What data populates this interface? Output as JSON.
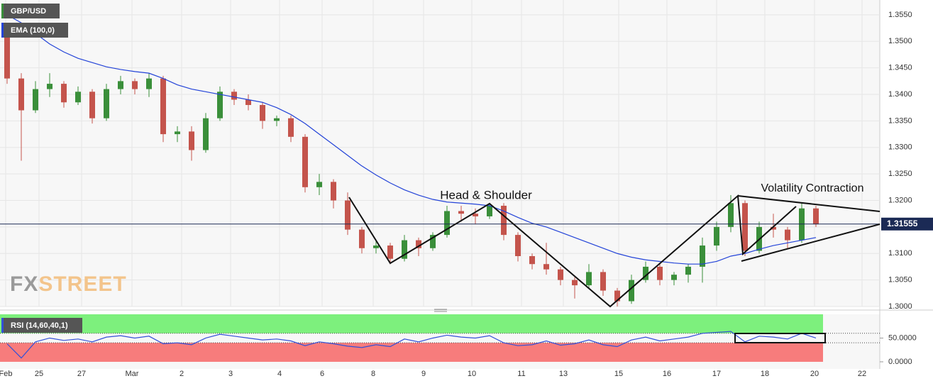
{
  "chart_data": {
    "type": "candlestick",
    "title": "GBP/USD",
    "watermark": [
      "FX",
      "STREET"
    ],
    "annotations": [
      "Head & Shoulder",
      "Volatility Contraction"
    ],
    "xlim": [
      -0.5,
      61.5
    ],
    "xticks": [
      {
        "value": -0.1,
        "label": "Feb"
      },
      {
        "value": 2.25,
        "label": "25"
      },
      {
        "value": 5.25,
        "label": "27"
      },
      {
        "value": 8.8,
        "label": "Mar"
      },
      {
        "value": 12.3,
        "label": "2"
      },
      {
        "value": 15.75,
        "label": "3"
      },
      {
        "value": 19.2,
        "label": "4"
      },
      {
        "value": 22.2,
        "label": "6"
      },
      {
        "value": 25.8,
        "label": "8"
      },
      {
        "value": 29.35,
        "label": "9"
      },
      {
        "value": 32.75,
        "label": "10"
      },
      {
        "value": 36.25,
        "label": "11"
      },
      {
        "value": 39.2,
        "label": "13"
      },
      {
        "value": 43.1,
        "label": "15"
      },
      {
        "value": 46.5,
        "label": "16"
      },
      {
        "value": 50,
        "label": "17"
      },
      {
        "value": 53.4,
        "label": "18"
      },
      {
        "value": 56.9,
        "label": "20"
      },
      {
        "value": 60.25,
        "label": "22"
      }
    ],
    "ylim": [
      1.3,
      1.3578
    ],
    "yticks": [
      {
        "value": 1.3,
        "label": "1.3000"
      },
      {
        "value": 1.305,
        "label": "1.3050"
      },
      {
        "value": 1.31,
        "label": "1.3100"
      },
      {
        "value": 1.315,
        "label": "1.3150"
      },
      {
        "value": 1.32,
        "label": "1.3200"
      },
      {
        "value": 1.325,
        "label": "1.3250"
      },
      {
        "value": 1.33,
        "label": "1.3300"
      },
      {
        "value": 1.335,
        "label": "1.3350"
      },
      {
        "value": 1.34,
        "label": "1.3400"
      },
      {
        "value": 1.345,
        "label": "1.3450"
      },
      {
        "value": 1.35,
        "label": "1.3500"
      },
      {
        "value": 1.355,
        "label": "1.3550"
      }
    ],
    "grid": true,
    "last_price": 1.31555,
    "up_color": "#3a8f3a",
    "down_color": "#c4544c",
    "open": [
      1.352,
      1.343,
      1.337,
      1.341,
      1.342,
      1.3385,
      1.3405,
      1.3355,
      1.341,
      1.3425,
      1.341,
      1.343,
      1.3325,
      1.333,
      1.3295,
      1.3355,
      1.3405,
      1.339,
      1.338,
      1.335,
      1.3355,
      1.332,
      1.3225,
      1.3235,
      1.32,
      1.3145,
      1.311,
      1.3115,
      1.309,
      1.3125,
      1.311,
      1.3135,
      1.318,
      1.3175,
      1.317,
      1.319,
      1.3135,
      1.3095,
      1.308,
      1.307,
      1.305,
      1.304,
      1.3065,
      1.303,
      1.301,
      1.305,
      1.3075,
      1.305,
      1.306,
      1.3075,
      1.3115,
      1.315,
      1.3195,
      1.3105,
      1.315,
      1.3145,
      1.3125,
      1.3185
    ],
    "high": [
      1.3525,
      1.344,
      1.3425,
      1.344,
      1.3425,
      1.3415,
      1.341,
      1.342,
      1.3435,
      1.343,
      1.344,
      1.3435,
      1.334,
      1.334,
      1.3365,
      1.3415,
      1.341,
      1.34,
      1.3385,
      1.336,
      1.336,
      1.3325,
      1.325,
      1.324,
      1.3215,
      1.315,
      1.3125,
      1.312,
      1.3135,
      1.313,
      1.314,
      1.319,
      1.319,
      1.3185,
      1.3195,
      1.3195,
      1.314,
      1.31,
      1.312,
      1.3075,
      1.3055,
      1.308,
      1.307,
      1.3035,
      1.306,
      1.3085,
      1.308,
      1.3065,
      1.308,
      1.313,
      1.316,
      1.321,
      1.32,
      1.316,
      1.3175,
      1.315,
      1.3195,
      1.319
    ],
    "low": [
      1.342,
      1.3275,
      1.3365,
      1.3395,
      1.3375,
      1.338,
      1.3345,
      1.335,
      1.34,
      1.34,
      1.3395,
      1.331,
      1.331,
      1.3275,
      1.329,
      1.335,
      1.338,
      1.337,
      1.3335,
      1.334,
      1.331,
      1.3215,
      1.321,
      1.3185,
      1.3135,
      1.31,
      1.31,
      1.308,
      1.3085,
      1.3095,
      1.3105,
      1.313,
      1.316,
      1.3155,
      1.3165,
      1.3125,
      1.3085,
      1.307,
      1.306,
      1.304,
      1.3015,
      1.3035,
      1.302,
      1.3,
      1.3005,
      1.3045,
      1.304,
      1.304,
      1.3045,
      1.3045,
      1.3105,
      1.314,
      1.3095,
      1.31,
      1.313,
      1.311,
      1.312,
      1.315
    ],
    "close": [
      1.343,
      1.337,
      1.341,
      1.342,
      1.3385,
      1.3405,
      1.3355,
      1.341,
      1.3425,
      1.341,
      1.343,
      1.3325,
      1.333,
      1.3295,
      1.3355,
      1.3405,
      1.339,
      1.338,
      1.335,
      1.3355,
      1.332,
      1.3225,
      1.3235,
      1.32,
      1.3145,
      1.311,
      1.3115,
      1.309,
      1.3125,
      1.311,
      1.3135,
      1.318,
      1.3175,
      1.317,
      1.319,
      1.3135,
      1.3095,
      1.308,
      1.307,
      1.305,
      1.304,
      1.3065,
      1.303,
      1.301,
      1.305,
      1.3075,
      1.305,
      1.306,
      1.3075,
      1.3115,
      1.315,
      1.3195,
      1.3105,
      1.315,
      1.3145,
      1.3125,
      1.3185,
      1.3155
    ],
    "ema": {
      "name": "EMA (100,0)",
      "color": "#2343d8",
      "values": [
        1.355,
        1.3535,
        1.3515,
        1.3495,
        1.348,
        1.3468,
        1.346,
        1.3452,
        1.3447,
        1.3443,
        1.344,
        1.343,
        1.3418,
        1.341,
        1.3405,
        1.34,
        1.3395,
        1.339,
        1.3385,
        1.3375,
        1.3362,
        1.3345,
        1.3325,
        1.3305,
        1.3285,
        1.3265,
        1.3248,
        1.3233,
        1.322,
        1.321,
        1.3202,
        1.3197,
        1.3195,
        1.3193,
        1.319,
        1.318,
        1.3168,
        1.3157,
        1.315,
        1.314,
        1.313,
        1.312,
        1.311,
        1.31,
        1.3093,
        1.3088,
        1.3085,
        1.3082,
        1.308,
        1.308,
        1.3085,
        1.3095,
        1.31,
        1.3108,
        1.3115,
        1.312,
        1.3125,
        1.313
      ]
    },
    "rsi": {
      "name": "RSI (14,60,40,1)",
      "color": "#3250d8",
      "upper_band": 60,
      "lower_band": 40,
      "ylim": [
        -15,
        100
      ],
      "yticks": [
        {
          "value": 0,
          "label": "0.0000"
        },
        {
          "value": 50,
          "label": "50.0000"
        }
      ],
      "values": [
        38,
        8,
        42,
        50,
        45,
        48,
        42,
        52,
        55,
        50,
        54,
        38,
        40,
        36,
        50,
        58,
        54,
        50,
        46,
        48,
        44,
        34,
        42,
        38,
        33,
        30,
        36,
        32,
        48,
        42,
        50,
        56,
        52,
        50,
        55,
        40,
        34,
        36,
        44,
        35,
        38,
        46,
        36,
        32,
        46,
        52,
        44,
        48,
        52,
        60,
        62,
        64,
        42,
        54,
        52,
        48,
        60,
        50
      ]
    }
  }
}
